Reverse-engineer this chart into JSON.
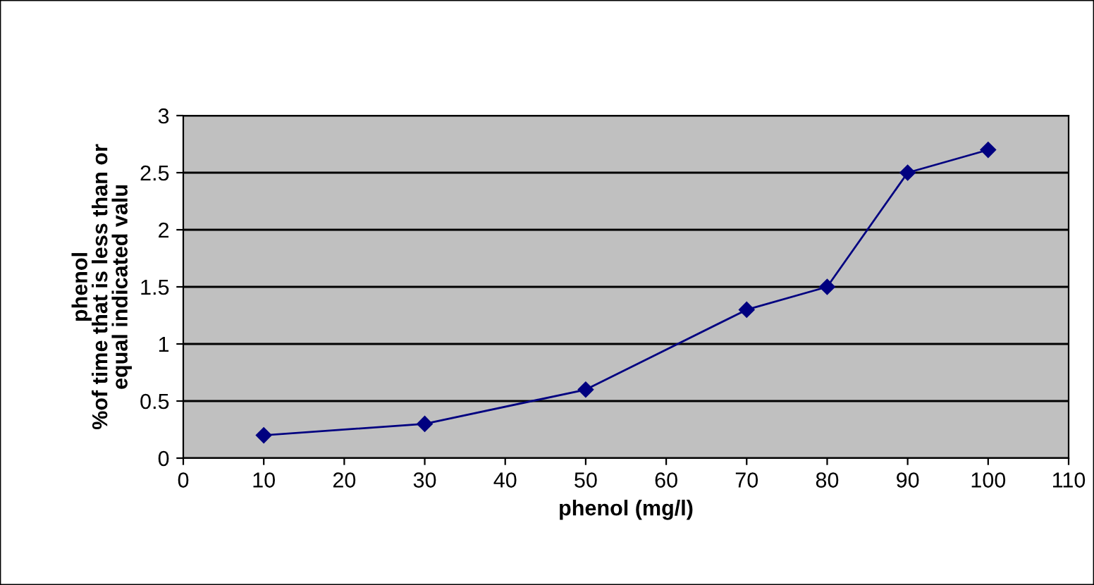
{
  "chart_data": {
    "type": "line",
    "xlabel": "phenol (mg/l)",
    "ylabel": "phenol\n%of time that is less than or\nequal indicated valu",
    "x": [
      10,
      30,
      50,
      70,
      80,
      90,
      100
    ],
    "series": [
      {
        "color": "#000080",
        "values": [
          0.2,
          0.3,
          0.6,
          1.3,
          1.5,
          2.5,
          2.7
        ]
      }
    ],
    "xlim": [
      0,
      110
    ],
    "xticks": [
      0,
      10,
      20,
      30,
      40,
      50,
      60,
      70,
      80,
      90,
      100,
      110
    ],
    "ylim": [
      0,
      3
    ],
    "yticks": [
      0,
      0.5,
      1,
      1.5,
      2,
      2.5,
      3
    ],
    "grid": "y",
    "marker": "diamond",
    "line_style": "solid",
    "legend": false
  }
}
